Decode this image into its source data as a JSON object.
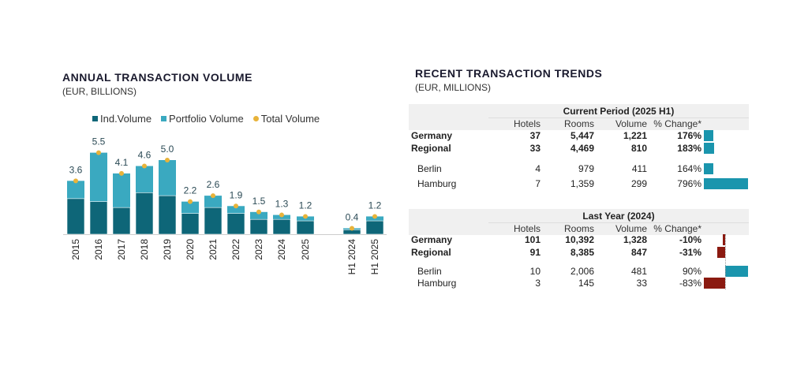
{
  "left": {
    "title": "ANNUAL TRANSACTION VOLUME",
    "subtitle": "(EUR, BILLIONS)"
  },
  "right": {
    "title": "RECENT TRANSACTION TRENDS",
    "subtitle": "(EUR, MILLIONS)"
  },
  "colors": {
    "ind": "#0e6678",
    "portfolio": "#3aa9c0",
    "total": "#e8b33a",
    "pos": "#1a95ad",
    "neg": "#8b1a10"
  },
  "chart_data": {
    "type": "bar",
    "stacked": true,
    "legend": [
      "Ind.Volume",
      "Portfolio Volume",
      "Total Volume"
    ],
    "categories": [
      "2015",
      "2016",
      "2017",
      "2018",
      "2019",
      "2020",
      "2021",
      "2022",
      "2023",
      "2024",
      "2025",
      "H1 2024",
      "H1 2025"
    ],
    "series": [
      {
        "name": "Ind.Volume",
        "values": [
          2.4,
          2.2,
          1.8,
          2.8,
          2.6,
          1.4,
          1.8,
          1.4,
          1.0,
          1.0,
          0.9,
          0.3,
          0.9
        ]
      },
      {
        "name": "Portfolio Volume",
        "values": [
          1.2,
          3.3,
          2.3,
          1.8,
          2.4,
          0.8,
          0.8,
          0.5,
          0.5,
          0.3,
          0.3,
          0.1,
          0.3
        ]
      }
    ],
    "totals": [
      3.6,
      5.5,
      4.1,
      4.6,
      5.0,
      2.2,
      2.6,
      1.9,
      1.5,
      1.3,
      1.2,
      0.4,
      1.2
    ],
    "total_labels": [
      "3.6",
      "5.5",
      "4.1",
      "4.6",
      "5.0",
      "2.2",
      "2.6",
      "1.9",
      "1.5",
      "1.3",
      "1.2",
      "0.4",
      "1.2"
    ],
    "ylim": [
      0,
      6
    ]
  },
  "tables": [
    {
      "title": "Current Period (2025 H1)",
      "headers": [
        "Hotels",
        "Rooms",
        "Volume",
        "% Change*"
      ],
      "rows": [
        {
          "name": "Germany",
          "bold": true,
          "hotels": "37",
          "rooms": "5,447",
          "volume": "1,221",
          "change": "176%",
          "pct": 176
        },
        {
          "name": "Regional",
          "bold": true,
          "hotels": "33",
          "rooms": "4,469",
          "volume": "810",
          "change": "183%",
          "pct": 183
        },
        {
          "name": "Berlin",
          "bold": false,
          "hotels": "4",
          "rooms": "979",
          "volume": "411",
          "change": "164%",
          "pct": 164
        },
        {
          "name": "Hamburg",
          "bold": false,
          "hotels": "7",
          "rooms": "1,359",
          "volume": "299",
          "change": "796%",
          "pct": 796
        }
      ]
    },
    {
      "title": "Last Year (2024)",
      "headers": [
        "Hotels",
        "Rooms",
        "Volume",
        "% Change*"
      ],
      "rows": [
        {
          "name": "Germany",
          "bold": true,
          "hotels": "101",
          "rooms": "10,392",
          "volume": "1,328",
          "change": "-10%",
          "pct": -10
        },
        {
          "name": "Regional",
          "bold": true,
          "hotels": "91",
          "rooms": "8,385",
          "volume": "847",
          "change": "-31%",
          "pct": -31
        },
        {
          "name": "Berlin",
          "bold": false,
          "hotels": "10",
          "rooms": "2,006",
          "volume": "481",
          "change": "90%",
          "pct": 90
        },
        {
          "name": "Hamburg",
          "bold": false,
          "hotels": "3",
          "rooms": "145",
          "volume": "33",
          "change": "-83%",
          "pct": -83
        }
      ]
    }
  ]
}
